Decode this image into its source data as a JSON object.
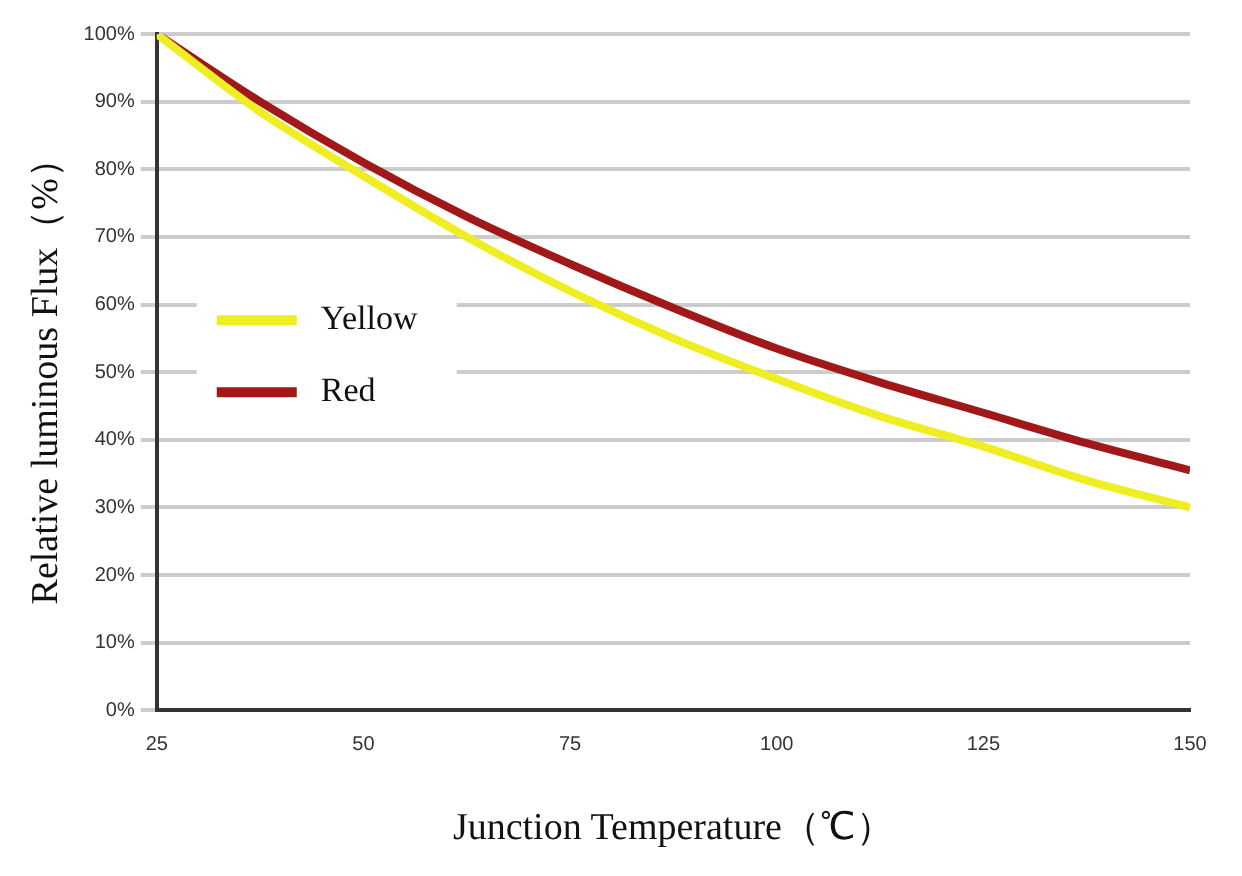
{
  "chart_data": {
    "type": "line",
    "xlabel": "Junction Temperature（℃）",
    "ylabel": "Relative luminous Flux（%）",
    "x": [
      25,
      37.5,
      50,
      62.5,
      75,
      87.5,
      100,
      112.5,
      125,
      137.5,
      150
    ],
    "series": [
      {
        "name": "Yellow",
        "color": "#eeee22",
        "values": [
          100,
          88.5,
          79,
          70,
          62,
          55,
          49,
          43.5,
          39,
          34,
          30
        ]
      },
      {
        "name": "Red",
        "color": "#a01818",
        "values": [
          100,
          90,
          81,
          73,
          66,
          59.5,
          53.5,
          48.5,
          44,
          39.5,
          35.5
        ]
      }
    ],
    "xlim": [
      25,
      150
    ],
    "xticks": [
      25,
      50,
      75,
      100,
      125,
      150
    ],
    "ylim": [
      0,
      100
    ],
    "yticks": [
      {
        "value": 0,
        "label": "0%"
      },
      {
        "value": 10,
        "label": "10%"
      },
      {
        "value": 20,
        "label": "20%"
      },
      {
        "value": 30,
        "label": "30%"
      },
      {
        "value": 40,
        "label": "40%"
      },
      {
        "value": 50,
        "label": "50%"
      },
      {
        "value": 60,
        "label": "60%"
      },
      {
        "value": 70,
        "label": "70%"
      },
      {
        "value": 80,
        "label": "80%"
      },
      {
        "value": 90,
        "label": "90%"
      },
      {
        "value": 100,
        "label": "100%"
      }
    ],
    "grid": "y",
    "legend": "center left",
    "marker": "none",
    "line_style": "solid"
  }
}
